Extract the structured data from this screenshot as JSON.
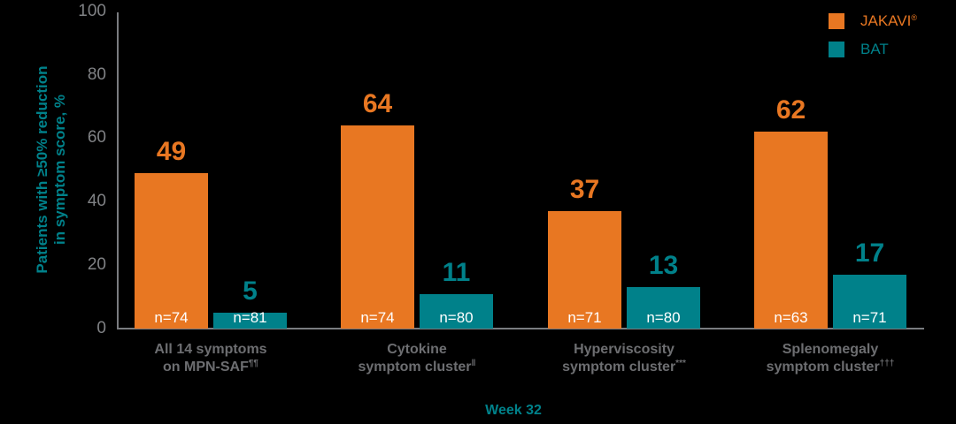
{
  "chart_data": {
    "type": "bar",
    "title": "",
    "xlabel": "Week 32",
    "ylabel": "Patients with ≥50% reduction in symptom score, %",
    "ylabel_lines": [
      "Patients with ≥50% reduction",
      "in symptom score, %"
    ],
    "ylim": [
      0,
      100
    ],
    "yticks": [
      "0",
      "20",
      "40",
      "60",
      "80",
      "100"
    ],
    "grid": false,
    "legend_position": "top-right",
    "categories": [
      {
        "line1": "All 14 symptoms",
        "line2": "on MPN-SAF",
        "sup": "¶¶"
      },
      {
        "line1": "Cytokine",
        "line2": "symptom cluster",
        "sup": "‖"
      },
      {
        "line1": "Hyperviscosity",
        "line2": "symptom cluster",
        "sup": "***"
      },
      {
        "line1": "Splenomegaly",
        "line2": "symptom cluster",
        "sup": "†††"
      }
    ],
    "series": [
      {
        "name": "JAKAVI",
        "name_sup": "®",
        "color": "#E87722",
        "values": [
          49,
          64,
          37,
          62
        ],
        "labels": [
          "49",
          "64",
          "37",
          "62"
        ],
        "n": [
          "n=74",
          "n=74",
          "n=71",
          "n=63"
        ]
      },
      {
        "name": "BAT",
        "name_sup": "",
        "color": "#00818A",
        "values": [
          5,
          11,
          13,
          17
        ],
        "labels": [
          "5",
          "11",
          "13",
          "17"
        ],
        "n": [
          "n=81",
          "n=80",
          "n=80",
          "n=71"
        ]
      }
    ]
  }
}
